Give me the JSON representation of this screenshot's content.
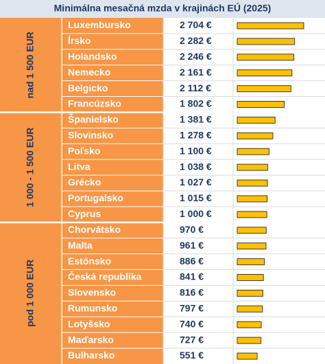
{
  "chart_data": {
    "type": "bar",
    "title": "Minimálna mesačná mzda v krajinách EÚ (2025)",
    "color": "#ffc000",
    "xlim": [
      -370,
      2800
    ],
    "groups": [
      {
        "label": "nad 1 500 EUR",
        "categories": [
          "Luxembursko",
          "Írsko",
          "Holandsko",
          "Nemecko",
          "Belgicko",
          "Francúzsko"
        ],
        "values": [
          2704,
          2282,
          2246,
          2161,
          2112,
          1802
        ],
        "value_labels": [
          "2 704 €",
          "2 282 €",
          "2 246 €",
          "2 161 €",
          "2 112 €",
          "1 802 €"
        ]
      },
      {
        "label": "1 000 - 1 500 EUR",
        "categories": [
          "Španielsko",
          "Slovinsko",
          "Poľsko",
          "Litva",
          "Grécko",
          "Portugalsko",
          "Cyprus"
        ],
        "values": [
          1381,
          1278,
          1100,
          1038,
          1027,
          1015,
          1000
        ],
        "value_labels": [
          "1 381 €",
          "1 278 €",
          "1 100 €",
          "1 038 €",
          "1 027 €",
          "1 015 €",
          "1 000 €"
        ]
      },
      {
        "label": "pod 1 000 EUR",
        "categories": [
          "Chorvátsko",
          "Malta",
          "Estónsko",
          "Česká republika",
          "Slovensko",
          "Rumunsko",
          "Lotyšsko",
          "Maďarsko",
          "Bulharsko"
        ],
        "values": [
          970,
          961,
          886,
          841,
          816,
          797,
          740,
          727,
          551
        ],
        "value_labels": [
          "970 €",
          "961 €",
          "886 €",
          "841 €",
          "816 €",
          "797 €",
          "740 €",
          "727 €",
          "551 €"
        ]
      }
    ]
  }
}
